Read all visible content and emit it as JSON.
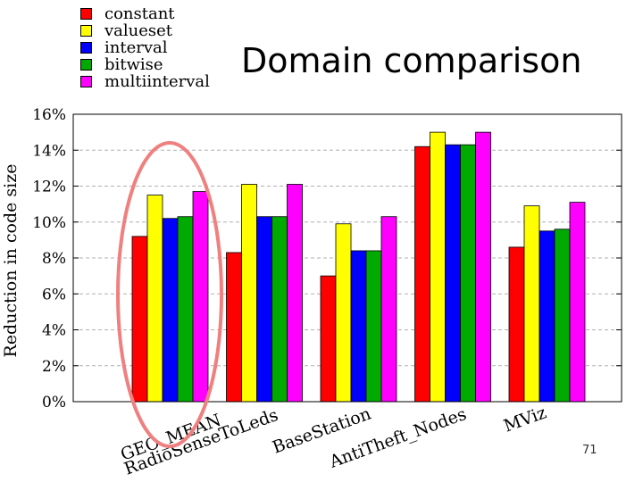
{
  "slide": {
    "title": "Domain comparison",
    "page_number": "71"
  },
  "chart_data": {
    "type": "bar",
    "ylabel": "Reduction in code size",
    "xlabel": "",
    "ylim": [
      0,
      16
    ],
    "y_ticks": [
      "0%",
      "2%",
      "4%",
      "6%",
      "8%",
      "10%",
      "12%",
      "14%",
      "16%"
    ],
    "grid": "horizontal dashed",
    "legend_placement": "top-left, above plot",
    "categories": [
      "GEO_MEAN",
      "RadioSenseToLeds",
      "BaseStation",
      "AntiTheft_Nodes",
      "MViz"
    ],
    "series": [
      {
        "name": "constant",
        "color": "#ff0000",
        "values": [
          9.2,
          8.3,
          7.0,
          14.2,
          8.6
        ]
      },
      {
        "name": "valueset",
        "color": "#ffff00",
        "values": [
          11.5,
          12.1,
          9.9,
          15.0,
          10.9
        ]
      },
      {
        "name": "interval",
        "color": "#0000ff",
        "values": [
          10.2,
          10.3,
          8.4,
          14.3,
          9.5
        ]
      },
      {
        "name": "bitwise",
        "color": "#00aa00",
        "values": [
          10.3,
          10.3,
          8.4,
          14.3,
          9.6
        ]
      },
      {
        "name": "multiinterval",
        "color": "#ff00ff",
        "values": [
          11.7,
          12.1,
          10.3,
          15.0,
          11.1
        ]
      }
    ],
    "highlight": {
      "category": "GEO_MEAN",
      "shape": "ellipse",
      "color": "#f08080"
    }
  }
}
